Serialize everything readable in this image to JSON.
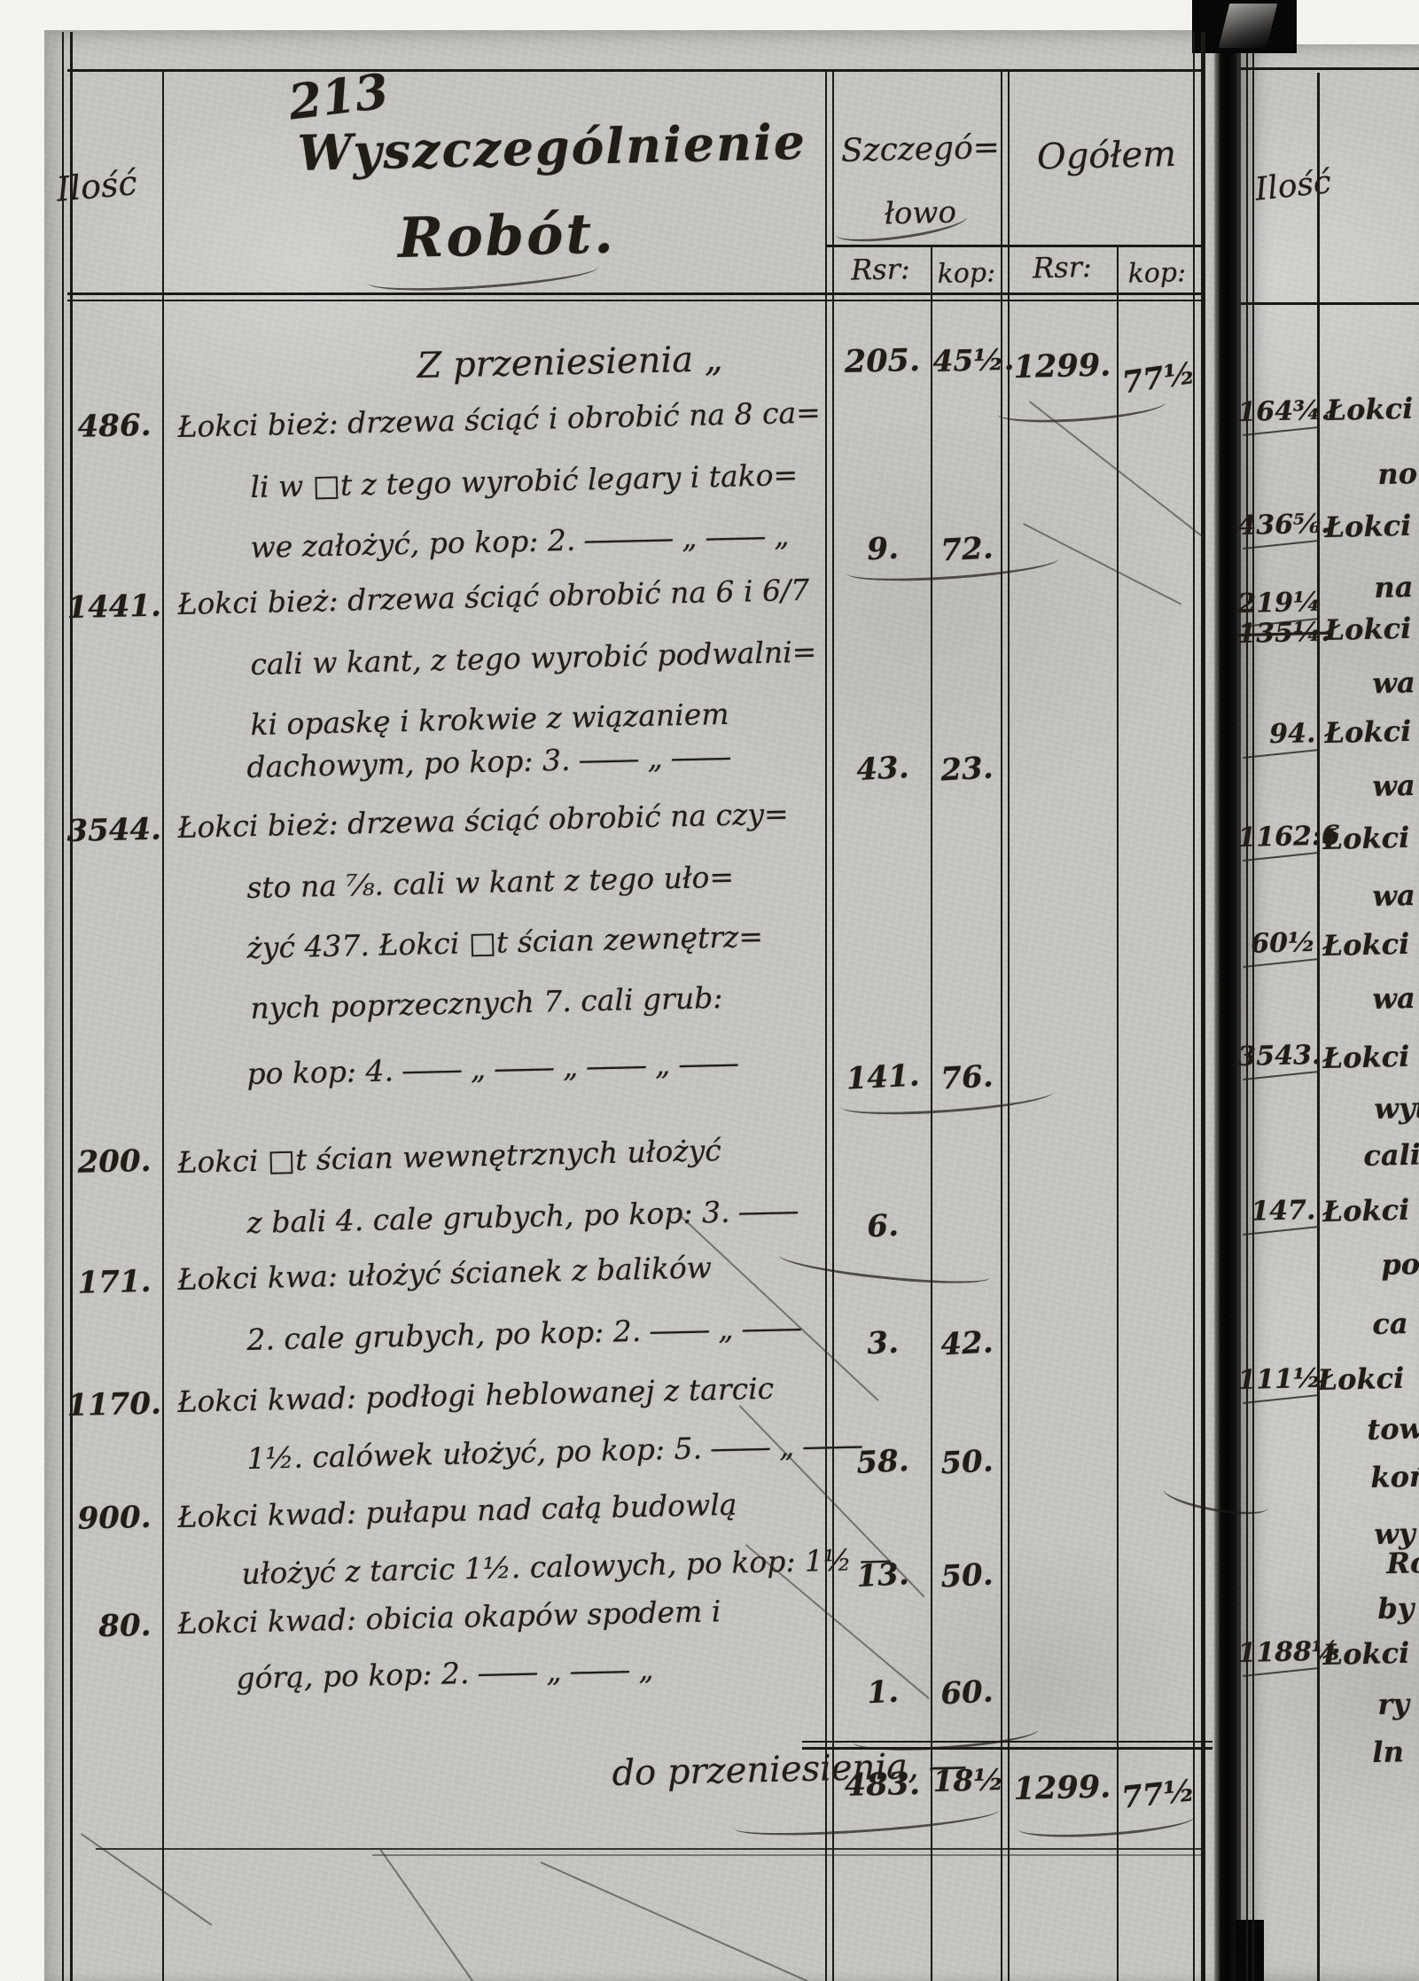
{
  "document": {
    "type_label": "handwritten ledger scan",
    "page_number": "213",
    "colors": {
      "ink": "#201c15",
      "paper": "#c6c5c1",
      "binding": "#060606"
    }
  },
  "main": {
    "header": {
      "quantity_col": "Ilość",
      "works_line1": "Wyszczególnienie",
      "works_line2": "Robót.",
      "detail_line1": "Szczegó=",
      "detail_line2": "łowo",
      "total_col": "Ogółem",
      "detail_rsr": "Rsr:",
      "detail_kop": "kop:",
      "total_rsr": "Rsr:",
      "total_kop": "kop:"
    },
    "carry_top": {
      "label": "Z przeniesienia „",
      "detail_rsr": "205.",
      "detail_kop": "45½.",
      "total_rsr": "1299.",
      "total_kop": "77½"
    },
    "entries": [
      {
        "qty": "486.",
        "lines": [
          "Łokci bież: drzewa ściąć i obrobić na 8 ca=",
          "li w □t z tego wyrobić legary i tako=",
          "we założyć, po kop: 2. ――― „ ―― „"
        ],
        "rsr": "9.",
        "kop": "72."
      },
      {
        "qty": "1441.",
        "lines": [
          "Łokci bież: drzewa ściąć obrobić na 6 i 6/7",
          "cali w kant, z tego wyrobić podwalni=",
          "ki opaskę i krokwie z wiązaniem",
          "dachowym, po kop: 3. ―― „ ――"
        ],
        "rsr": "43.",
        "kop": "23."
      },
      {
        "qty": "3544.",
        "lines": [
          "Łokci bież: drzewa ściąć obrobić na czy=",
          "sto na ⅞. cali w kant z tego uło=",
          "żyć 437. Łokci □t ścian zewnętrz=",
          "nych poprzecznych 7. cali grub:",
          "po kop: 4. ―― „ ―― „ ―― „ ――"
        ],
        "rsr": "141.",
        "kop": "76."
      },
      {
        "qty": "200.",
        "lines": [
          "Łokci □t ścian wewnętrznych ułożyć",
          "z bali 4. cale grubych, po kop: 3. ――"
        ],
        "rsr": "6.",
        "kop": ""
      },
      {
        "qty": "171.",
        "lines": [
          "Łokci kwa: ułożyć ścianek z balików",
          "2. cale grubych, po kop: 2. ―― „ ――"
        ],
        "rsr": "3.",
        "kop": "42."
      },
      {
        "qty": "1170.",
        "lines": [
          "Łokci kwad: podłogi heblowanej z tarcic",
          "1½. calówek ułożyć, po kop: 5. ―― „ ――"
        ],
        "rsr": "58.",
        "kop": "50."
      },
      {
        "qty": "900.",
        "lines": [
          "Łokci kwad: pułapu nad całą budowlą",
          "ułożyć z tarcic 1½. calowych, po kop: 1½ ―"
        ],
        "rsr": "13.",
        "kop": "50."
      },
      {
        "qty": "80.",
        "lines": [
          "Łokci kwad: obicia okapów spodem i",
          "górą, po kop: 2. ―― „ ―― „"
        ],
        "rsr": "1.",
        "kop": "60."
      }
    ],
    "carry_bottom": {
      "label": "do przeniesienia, ―",
      "detail_rsr": "483.",
      "detail_kop": "18½",
      "total_rsr": "1299.",
      "total_kop": "77½"
    }
  },
  "right_page": {
    "header": {
      "quantity_col": "Ilość"
    },
    "entries": [
      {
        "qty": "164¾.",
        "words": [
          "Łokci",
          "no"
        ]
      },
      {
        "qty": "436⅚.",
        "words": [
          "Łokci",
          "na"
        ]
      },
      {
        "qty": "219¼",
        "struck": "135¼.",
        "words": [
          "Łokci",
          "wa"
        ]
      },
      {
        "qty": "94.",
        "words": [
          "Łokci",
          "wa"
        ]
      },
      {
        "qty": "1162:6",
        "words": [
          "Łokci",
          "wa"
        ]
      },
      {
        "qty": "60½",
        "words": [
          "Łokci",
          "wa"
        ]
      },
      {
        "qty": "3543.",
        "words": [
          "Łokci",
          "wyto",
          "cali"
        ]
      },
      {
        "qty": "147.",
        "words": [
          "Łokci",
          "po",
          "ca"
        ]
      },
      {
        "qty": "111½",
        "words": [
          "Łokci",
          "tow",
          "koń",
          "wy",
          "Ro",
          "by"
        ]
      },
      {
        "qty": "1188⅓",
        "words": [
          "Łokci",
          "ry",
          "ln"
        ]
      }
    ]
  }
}
